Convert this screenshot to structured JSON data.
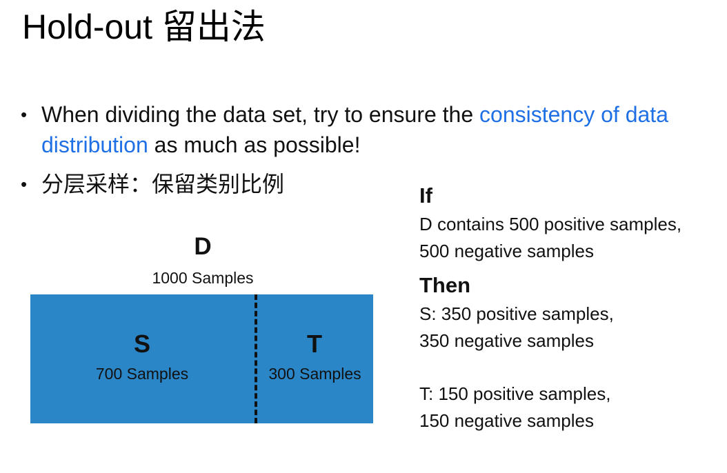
{
  "slide": {
    "title": "Hold-out 留出法",
    "bullets": {
      "first": {
        "before": "When dividing the data set, try to ensure the ",
        "highlight": "consistency of data distribution",
        "after": " as much as possible!"
      },
      "second": "分层采样：保留类别比例"
    },
    "bullet_symbol": "•",
    "colors": {
      "highlight": "#1f6fe5",
      "dataset_box": "#2b86c8"
    }
  },
  "diagram": {
    "dataset_name": "D",
    "dataset_samples": "1000 Samples",
    "training_name": "S",
    "training_samples": "700 Samples",
    "test_name": "T",
    "test_samples": "300 Samples"
  },
  "explanation": {
    "if_heading": "If",
    "if_lines": [
      "D contains 500 positive samples,",
      "500 negative samples"
    ],
    "then_heading": "Then",
    "s_lines": [
      "S: 350 positive samples,",
      "350 negative samples"
    ],
    "t_lines": [
      "T: 150 positive samples,",
      "150 negative samples"
    ]
  }
}
